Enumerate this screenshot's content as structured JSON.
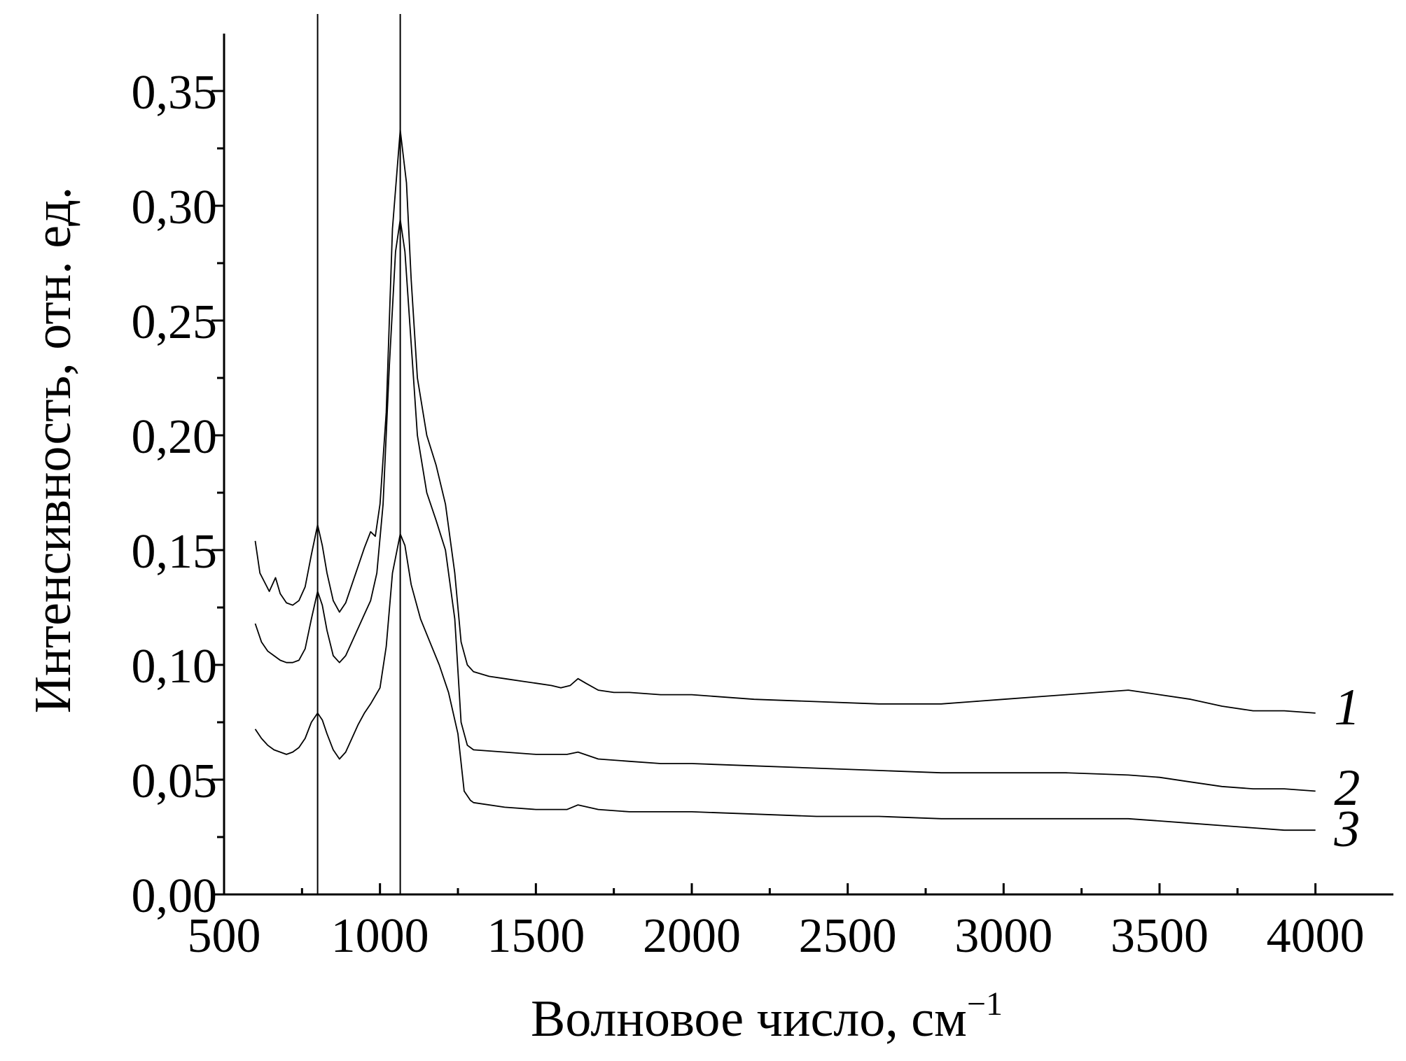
{
  "chart_data": {
    "type": "line",
    "xlabel": "Волновое число, см",
    "xlabel_sup": "−1",
    "ylabel": "Интенсивность, отн. ед.",
    "xlim": [
      500,
      4250
    ],
    "ylim": [
      0,
      0.375
    ],
    "x_ticks": [
      {
        "value": 500,
        "label": "500"
      },
      {
        "value": 1000,
        "label": "1000"
      },
      {
        "value": 1500,
        "label": "1500"
      },
      {
        "value": 2000,
        "label": "2000"
      },
      {
        "value": 2500,
        "label": "2500"
      },
      {
        "value": 3000,
        "label": "3000"
      },
      {
        "value": 3500,
        "label": "3500"
      },
      {
        "value": 4000,
        "label": "4000"
      }
    ],
    "y_ticks": [
      {
        "value": 0.0,
        "label": "0,00"
      },
      {
        "value": 0.05,
        "label": "0,05"
      },
      {
        "value": 0.1,
        "label": "0,10"
      },
      {
        "value": 0.15,
        "label": "0,15"
      },
      {
        "value": 0.2,
        "label": "0,20"
      },
      {
        "value": 0.25,
        "label": "0,25"
      },
      {
        "value": 0.3,
        "label": "0,30"
      },
      {
        "value": 0.35,
        "label": "0,35"
      }
    ],
    "reference_lines_x": [
      800,
      1065
    ],
    "grid": false,
    "series": [
      {
        "name": "1",
        "label_x": 4060,
        "label_y": 0.082,
        "points": [
          [
            600,
            0.154
          ],
          [
            615,
            0.14
          ],
          [
            630,
            0.136
          ],
          [
            645,
            0.132
          ],
          [
            665,
            0.138
          ],
          [
            680,
            0.131
          ],
          [
            700,
            0.127
          ],
          [
            720,
            0.126
          ],
          [
            740,
            0.128
          ],
          [
            760,
            0.134
          ],
          [
            780,
            0.148
          ],
          [
            800,
            0.161
          ],
          [
            815,
            0.152
          ],
          [
            830,
            0.14
          ],
          [
            850,
            0.128
          ],
          [
            870,
            0.123
          ],
          [
            890,
            0.127
          ],
          [
            910,
            0.135
          ],
          [
            930,
            0.143
          ],
          [
            950,
            0.151
          ],
          [
            970,
            0.158
          ],
          [
            985,
            0.156
          ],
          [
            1000,
            0.17
          ],
          [
            1020,
            0.21
          ],
          [
            1040,
            0.29
          ],
          [
            1065,
            0.333
          ],
          [
            1085,
            0.31
          ],
          [
            1100,
            0.268
          ],
          [
            1120,
            0.225
          ],
          [
            1150,
            0.2
          ],
          [
            1180,
            0.187
          ],
          [
            1210,
            0.17
          ],
          [
            1240,
            0.14
          ],
          [
            1260,
            0.11
          ],
          [
            1280,
            0.1
          ],
          [
            1300,
            0.097
          ],
          [
            1350,
            0.095
          ],
          [
            1400,
            0.094
          ],
          [
            1450,
            0.093
          ],
          [
            1500,
            0.092
          ],
          [
            1550,
            0.091
          ],
          [
            1580,
            0.09
          ],
          [
            1610,
            0.091
          ],
          [
            1635,
            0.094
          ],
          [
            1660,
            0.092
          ],
          [
            1700,
            0.089
          ],
          [
            1750,
            0.088
          ],
          [
            1800,
            0.088
          ],
          [
            1900,
            0.087
          ],
          [
            2000,
            0.087
          ],
          [
            2200,
            0.085
          ],
          [
            2400,
            0.084
          ],
          [
            2600,
            0.083
          ],
          [
            2800,
            0.083
          ],
          [
            2900,
            0.084
          ],
          [
            3000,
            0.085
          ],
          [
            3100,
            0.086
          ],
          [
            3200,
            0.087
          ],
          [
            3300,
            0.088
          ],
          [
            3400,
            0.089
          ],
          [
            3500,
            0.087
          ],
          [
            3600,
            0.085
          ],
          [
            3700,
            0.082
          ],
          [
            3800,
            0.08
          ],
          [
            3900,
            0.08
          ],
          [
            4000,
            0.079
          ]
        ]
      },
      {
        "name": "2",
        "label_x": 4060,
        "label_y": 0.047,
        "points": [
          [
            600,
            0.118
          ],
          [
            620,
            0.11
          ],
          [
            640,
            0.106
          ],
          [
            660,
            0.104
          ],
          [
            680,
            0.102
          ],
          [
            700,
            0.101
          ],
          [
            720,
            0.101
          ],
          [
            740,
            0.102
          ],
          [
            760,
            0.107
          ],
          [
            780,
            0.12
          ],
          [
            800,
            0.132
          ],
          [
            815,
            0.126
          ],
          [
            830,
            0.115
          ],
          [
            850,
            0.104
          ],
          [
            870,
            0.101
          ],
          [
            890,
            0.104
          ],
          [
            910,
            0.11
          ],
          [
            930,
            0.116
          ],
          [
            950,
            0.122
          ],
          [
            970,
            0.128
          ],
          [
            990,
            0.14
          ],
          [
            1010,
            0.17
          ],
          [
            1030,
            0.23
          ],
          [
            1050,
            0.28
          ],
          [
            1065,
            0.294
          ],
          [
            1080,
            0.28
          ],
          [
            1100,
            0.24
          ],
          [
            1120,
            0.2
          ],
          [
            1150,
            0.175
          ],
          [
            1180,
            0.163
          ],
          [
            1210,
            0.15
          ],
          [
            1240,
            0.12
          ],
          [
            1260,
            0.075
          ],
          [
            1280,
            0.065
          ],
          [
            1300,
            0.063
          ],
          [
            1400,
            0.062
          ],
          [
            1500,
            0.061
          ],
          [
            1600,
            0.061
          ],
          [
            1635,
            0.062
          ],
          [
            1700,
            0.059
          ],
          [
            1800,
            0.058
          ],
          [
            1900,
            0.057
          ],
          [
            2000,
            0.057
          ],
          [
            2200,
            0.056
          ],
          [
            2400,
            0.055
          ],
          [
            2600,
            0.054
          ],
          [
            2800,
            0.053
          ],
          [
            3000,
            0.053
          ],
          [
            3200,
            0.053
          ],
          [
            3400,
            0.052
          ],
          [
            3500,
            0.051
          ],
          [
            3600,
            0.049
          ],
          [
            3700,
            0.047
          ],
          [
            3800,
            0.046
          ],
          [
            3900,
            0.046
          ],
          [
            4000,
            0.045
          ]
        ]
      },
      {
        "name": "3",
        "label_x": 4060,
        "label_y": 0.029,
        "points": [
          [
            600,
            0.072
          ],
          [
            620,
            0.068
          ],
          [
            640,
            0.065
          ],
          [
            660,
            0.063
          ],
          [
            680,
            0.062
          ],
          [
            700,
            0.061
          ],
          [
            720,
            0.062
          ],
          [
            740,
            0.064
          ],
          [
            760,
            0.068
          ],
          [
            780,
            0.075
          ],
          [
            800,
            0.079
          ],
          [
            815,
            0.076
          ],
          [
            830,
            0.07
          ],
          [
            850,
            0.063
          ],
          [
            870,
            0.059
          ],
          [
            890,
            0.062
          ],
          [
            910,
            0.068
          ],
          [
            930,
            0.074
          ],
          [
            950,
            0.079
          ],
          [
            970,
            0.083
          ],
          [
            1000,
            0.09
          ],
          [
            1020,
            0.108
          ],
          [
            1040,
            0.14
          ],
          [
            1065,
            0.157
          ],
          [
            1080,
            0.152
          ],
          [
            1100,
            0.135
          ],
          [
            1130,
            0.12
          ],
          [
            1160,
            0.11
          ],
          [
            1190,
            0.1
          ],
          [
            1220,
            0.088
          ],
          [
            1250,
            0.07
          ],
          [
            1270,
            0.045
          ],
          [
            1290,
            0.041
          ],
          [
            1300,
            0.04
          ],
          [
            1400,
            0.038
          ],
          [
            1500,
            0.037
          ],
          [
            1600,
            0.037
          ],
          [
            1635,
            0.039
          ],
          [
            1700,
            0.037
          ],
          [
            1800,
            0.036
          ],
          [
            2000,
            0.036
          ],
          [
            2200,
            0.035
          ],
          [
            2400,
            0.034
          ],
          [
            2600,
            0.034
          ],
          [
            2800,
            0.033
          ],
          [
            3000,
            0.033
          ],
          [
            3200,
            0.033
          ],
          [
            3400,
            0.033
          ],
          [
            3500,
            0.032
          ],
          [
            3600,
            0.031
          ],
          [
            3700,
            0.03
          ],
          [
            3800,
            0.029
          ],
          [
            3900,
            0.028
          ],
          [
            4000,
            0.028
          ]
        ]
      }
    ]
  }
}
